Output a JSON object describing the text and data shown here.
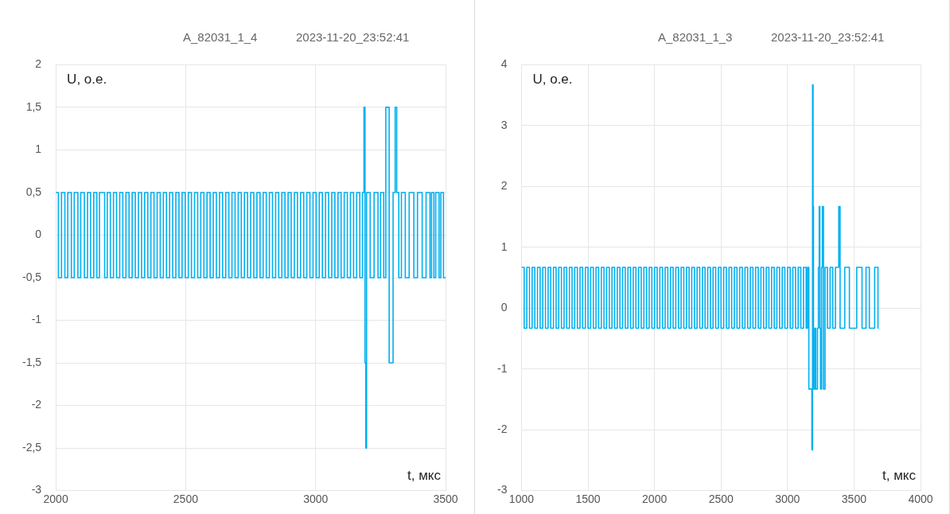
{
  "chart_data": [
    {
      "type": "step",
      "title": "A_82031_1_4",
      "subtitle": "2023-11-20_23:52:41",
      "xlabel": "t, мкс",
      "ylabel": "U, о.е.",
      "grid": true,
      "legend": false,
      "marker": "none",
      "xlim": [
        2000,
        3500
      ],
      "xticks": [
        2000,
        2500,
        3000,
        3500
      ],
      "ylim": [
        -3,
        2
      ],
      "yticks": [
        -3,
        {
          "value": -2.5,
          "label": "-2,5"
        },
        -2,
        {
          "value": -1.5,
          "label": "-1,5"
        },
        -1,
        {
          "value": -0.5,
          "label": "-0,5"
        },
        0,
        {
          "value": 0.5,
          "label": "0,5"
        },
        1,
        {
          "value": 1.5,
          "label": "1,5"
        },
        2
      ],
      "series": [
        {
          "color": "#00b0f0",
          "x": [
            2000,
            2010,
            2022,
            2035,
            2046,
            2060,
            2071,
            2085,
            2096,
            2110,
            2122,
            2134,
            2146,
            2158,
            2168,
            2188,
            2198,
            2210,
            2222,
            2234,
            2246,
            2258,
            2270,
            2282,
            2294,
            2306,
            2318,
            2330,
            2342,
            2354,
            2366,
            2378,
            2390,
            2402,
            2414,
            2426,
            2438,
            2450,
            2462,
            2474,
            2486,
            2498,
            2510,
            2522,
            2534,
            2546,
            2558,
            2570,
            2582,
            2594,
            2606,
            2618,
            2630,
            2642,
            2654,
            2666,
            2678,
            2690,
            2702,
            2714,
            2726,
            2738,
            2750,
            2762,
            2774,
            2786,
            2798,
            2810,
            2822,
            2834,
            2846,
            2858,
            2870,
            2882,
            2894,
            2906,
            2918,
            2930,
            2942,
            2954,
            2966,
            2978,
            2990,
            3002,
            3014,
            3026,
            3038,
            3050,
            3062,
            3074,
            3086,
            3098,
            3110,
            3122,
            3134,
            3146,
            3158,
            3170,
            3180,
            3186,
            3190,
            3193,
            3196,
            3210,
            3225,
            3240,
            3250,
            3262,
            3270,
            3283,
            3298,
            3306,
            3312,
            3320,
            3330,
            3345,
            3360,
            3378,
            3392,
            3410,
            3425,
            3440,
            3446,
            3455,
            3462,
            3475,
            3482,
            3492,
            3500
          ],
          "values": [
            0.5,
            -0.5,
            0.5,
            -0.5,
            0.5,
            -0.5,
            0.5,
            -0.5,
            0.5,
            -0.5,
            0.5,
            -0.5,
            0.5,
            -0.5,
            0.5,
            -0.5,
            0.5,
            -0.5,
            0.5,
            -0.5,
            0.5,
            -0.5,
            0.5,
            -0.5,
            0.5,
            -0.5,
            0.5,
            -0.5,
            0.5,
            -0.5,
            0.5,
            -0.5,
            0.5,
            -0.5,
            0.5,
            -0.5,
            0.5,
            -0.5,
            0.5,
            -0.5,
            0.5,
            -0.5,
            0.5,
            -0.5,
            0.5,
            -0.5,
            0.5,
            -0.5,
            0.5,
            -0.5,
            0.5,
            -0.5,
            0.5,
            -0.5,
            0.5,
            -0.5,
            0.5,
            -0.5,
            0.5,
            -0.5,
            0.5,
            -0.5,
            0.5,
            -0.5,
            0.5,
            -0.5,
            0.5,
            -0.5,
            0.5,
            -0.5,
            0.5,
            -0.5,
            0.5,
            -0.5,
            0.5,
            -0.5,
            0.5,
            -0.5,
            0.5,
            -0.5,
            0.5,
            -0.5,
            0.5,
            -0.5,
            0.5,
            -0.5,
            0.5,
            -0.5,
            0.5,
            -0.5,
            0.5,
            -0.5,
            0.5,
            -0.5,
            0.5,
            -0.5,
            0.5,
            -0.5,
            0.5,
            1.5,
            -1.5,
            -2.5,
            0.5,
            -0.5,
            0.5,
            -0.5,
            0.5,
            -0.5,
            1.5,
            -1.5,
            0.5,
            1.5,
            0.5,
            -0.5,
            0.5,
            -0.5,
            0.5,
            -0.5,
            0.5,
            -0.5,
            0.5,
            -0.5,
            0.5,
            -0.5,
            0.5,
            -0.5,
            0.5,
            -0.5,
            -0.5
          ]
        }
      ]
    },
    {
      "type": "step",
      "title": "A_82031_1_3",
      "subtitle": "2023-11-20_23:52:41",
      "xlabel": "t, мкс",
      "ylabel": "U, о.е.",
      "grid": true,
      "legend": false,
      "marker": "none",
      "xlim": [
        1000,
        4000
      ],
      "xticks": [
        1000,
        1500,
        2000,
        2500,
        3000,
        3500,
        4000
      ],
      "ylim": [
        -3,
        4
      ],
      "yticks": [
        -3,
        -2,
        -1,
        0,
        1,
        2,
        3,
        4
      ],
      "series": [
        {
          "color": "#00b0f0",
          "x": [
            1000,
            1020,
            1040,
            1060,
            1080,
            1100,
            1120,
            1140,
            1160,
            1180,
            1200,
            1220,
            1240,
            1260,
            1280,
            1300,
            1320,
            1340,
            1360,
            1380,
            1400,
            1420,
            1440,
            1460,
            1480,
            1500,
            1520,
            1540,
            1560,
            1580,
            1600,
            1620,
            1640,
            1660,
            1680,
            1700,
            1720,
            1740,
            1760,
            1780,
            1800,
            1820,
            1840,
            1860,
            1880,
            1900,
            1920,
            1940,
            1960,
            1980,
            2000,
            2020,
            2040,
            2060,
            2080,
            2100,
            2120,
            2140,
            2160,
            2180,
            2200,
            2220,
            2240,
            2260,
            2280,
            2300,
            2320,
            2340,
            2360,
            2380,
            2400,
            2420,
            2440,
            2460,
            2480,
            2500,
            2520,
            2540,
            2560,
            2580,
            2600,
            2620,
            2640,
            2660,
            2680,
            2700,
            2720,
            2740,
            2760,
            2780,
            2800,
            2820,
            2840,
            2860,
            2880,
            2900,
            2920,
            2940,
            2960,
            2980,
            3000,
            3020,
            3040,
            3060,
            3080,
            3100,
            3120,
            3140,
            3150,
            3160,
            3183,
            3188,
            3192,
            3195,
            3205,
            3212,
            3225,
            3232,
            3238,
            3243,
            3248,
            3256,
            3262,
            3270,
            3282,
            3300,
            3320,
            3340,
            3360,
            3385,
            3395,
            3430,
            3465,
            3520,
            3560,
            3590,
            3615,
            3655,
            3680,
            3685
          ],
          "values": [
            0.67,
            -0.33,
            0.67,
            -0.33,
            0.67,
            -0.33,
            0.67,
            -0.33,
            0.67,
            -0.33,
            0.67,
            -0.33,
            0.67,
            -0.33,
            0.67,
            -0.33,
            0.67,
            -0.33,
            0.67,
            -0.33,
            0.67,
            -0.33,
            0.67,
            -0.33,
            0.67,
            -0.33,
            0.67,
            -0.33,
            0.67,
            -0.33,
            0.67,
            -0.33,
            0.67,
            -0.33,
            0.67,
            -0.33,
            0.67,
            -0.33,
            0.67,
            -0.33,
            0.67,
            -0.33,
            0.67,
            -0.33,
            0.67,
            -0.33,
            0.67,
            -0.33,
            0.67,
            -0.33,
            0.67,
            -0.33,
            0.67,
            -0.33,
            0.67,
            -0.33,
            0.67,
            -0.33,
            0.67,
            -0.33,
            0.67,
            -0.33,
            0.67,
            -0.33,
            0.67,
            -0.33,
            0.67,
            -0.33,
            0.67,
            -0.33,
            0.67,
            -0.33,
            0.67,
            -0.33,
            0.67,
            -0.33,
            0.67,
            -0.33,
            0.67,
            -0.33,
            0.67,
            -0.33,
            0.67,
            -0.33,
            0.67,
            -0.33,
            0.67,
            -0.33,
            0.67,
            -0.33,
            0.67,
            -0.33,
            0.67,
            -0.33,
            0.67,
            -0.33,
            0.67,
            -0.33,
            0.67,
            -0.33,
            0.67,
            -0.33,
            0.67,
            -0.33,
            0.67,
            -0.33,
            0.67,
            -0.33,
            0.67,
            -1.33,
            -2.33,
            3.67,
            1.67,
            -1.33,
            -0.33,
            -1.33,
            -0.33,
            0.67,
            1.67,
            -0.33,
            -1.33,
            0.67,
            1.67,
            -1.33,
            0.67,
            -0.33,
            0.67,
            -0.33,
            0.67,
            1.67,
            -0.33,
            0.67,
            -0.33,
            0.67,
            -0.33,
            0.67,
            -0.33,
            0.67,
            -0.33,
            -0.33
          ]
        }
      ]
    }
  ]
}
